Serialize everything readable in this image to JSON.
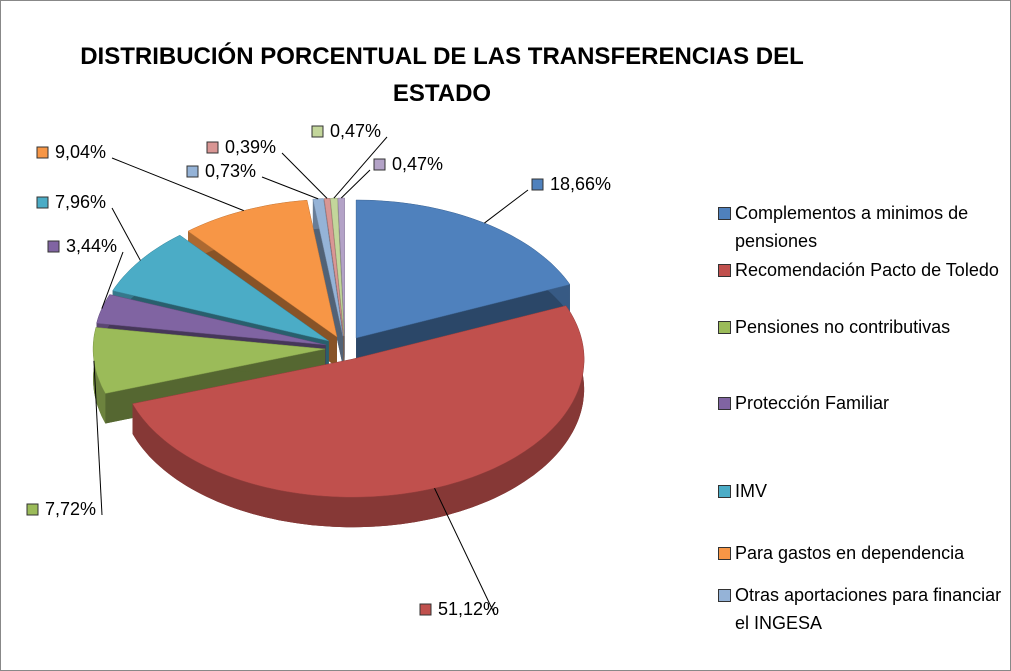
{
  "chart_data": {
    "type": "pie",
    "title": "DISTRIBUCIÓN PORCENTUAL DE LAS TRANSFERENCIAS DEL ESTADO",
    "categories": [
      "Complementos a minimos de pensiones",
      "Recomendación Pacto de Toledo",
      "Pensiones no contributivas",
      "Protección Familiar",
      "IMV",
      "Para gastos en dependencia",
      "Otras aportaciones para financiar el INGESA",
      null,
      null,
      null
    ],
    "values": [
      18.66,
      51.12,
      7.72,
      3.44,
      7.96,
      9.04,
      0.73,
      0.39,
      0.47,
      0.47
    ],
    "value_labels": [
      "18,66%",
      "51,12%",
      "7,72%",
      "3,44%",
      "7,96%",
      "9,04%",
      "0,73%",
      "0,39%",
      "0,47%",
      "0,47%"
    ],
    "colors": [
      "#4f81bd",
      "#c0504d",
      "#9bbb59",
      "#8064a2",
      "#4bacc6",
      "#f79646",
      "#95b3d7",
      "#d99694",
      "#c3d69b",
      "#b3a2c7"
    ],
    "legend": "right"
  }
}
